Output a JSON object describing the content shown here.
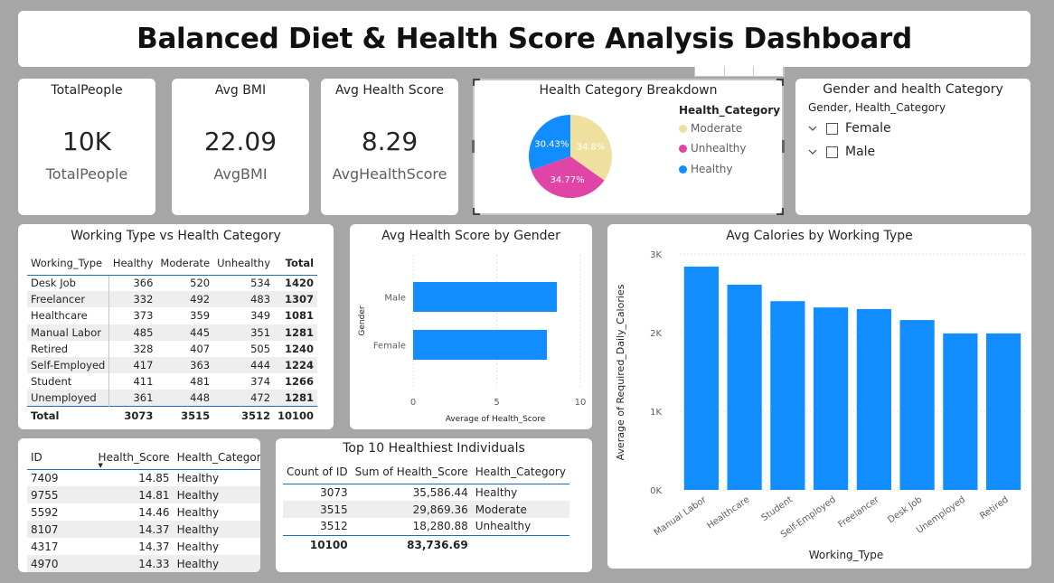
{
  "header": {
    "title": "Balanced Diet & Health Score Analysis Dashboard"
  },
  "kpis": [
    {
      "title": "TotalPeople",
      "value": "10K",
      "label": "TotalPeople"
    },
    {
      "title": "Avg BMI",
      "value": "22.09",
      "label": "AvgBMI"
    },
    {
      "title": "Avg Health Score",
      "value": "8.29",
      "label": "AvgHealthScore"
    }
  ],
  "pie": {
    "title": "Health Category Breakdown",
    "legend_title": "Health_Category",
    "slices": [
      {
        "name": "Moderate",
        "pct": 34.8,
        "label": "34.8%",
        "color": "#f0e0a0"
      },
      {
        "name": "Unhealthy",
        "pct": 34.77,
        "label": "34.77%",
        "color": "#e044a7"
      },
      {
        "name": "Healthy",
        "pct": 30.43,
        "label": "30.43%",
        "color": "#118dff"
      }
    ]
  },
  "slicer": {
    "title": "Gender and health Category",
    "subtitle": "Gender, Health_Category",
    "items": [
      "Female",
      "Male"
    ]
  },
  "matrix": {
    "title": "Working Type vs Health Category",
    "headers": [
      "Working_Type",
      "Healthy",
      "Moderate",
      "Unhealthy",
      "Total"
    ],
    "rows": [
      [
        "Desk Job",
        "366",
        "520",
        "534",
        "1420"
      ],
      [
        "Freelancer",
        "332",
        "492",
        "483",
        "1307"
      ],
      [
        "Healthcare",
        "373",
        "359",
        "349",
        "1081"
      ],
      [
        "Manual Labor",
        "485",
        "445",
        "351",
        "1281"
      ],
      [
        "Retired",
        "328",
        "407",
        "505",
        "1240"
      ],
      [
        "Self-Employed",
        "417",
        "363",
        "444",
        "1224"
      ],
      [
        "Student",
        "411",
        "481",
        "374",
        "1266"
      ],
      [
        "Unemployed",
        "361",
        "448",
        "472",
        "1281"
      ]
    ],
    "total": [
      "Total",
      "3073",
      "3515",
      "3512",
      "10100"
    ]
  },
  "gender_chart": {
    "title": "Avg Health Score by Gender",
    "ylabel": "Gender",
    "xlabel": "Average of Health_Score",
    "categories": [
      "Male",
      "Female"
    ],
    "values": [
      8.6,
      8.0
    ],
    "xticks": [
      "0",
      "5",
      "10"
    ],
    "xlim": [
      0,
      10
    ]
  },
  "chart_data": {
    "type": "bar",
    "title": "Avg Calories by Working Type",
    "xlabel": "Working_Type",
    "ylabel": "Average of Required_Daily_Calories",
    "categories": [
      "Manual Labor",
      "Healthcare",
      "Student",
      "Self-Employed",
      "Freelancer",
      "Desk Job",
      "Unemployed",
      "Retired"
    ],
    "values": [
      2840,
      2610,
      2400,
      2320,
      2300,
      2160,
      1990,
      1990
    ],
    "yticks": [
      "0K",
      "1K",
      "2K",
      "3K"
    ],
    "ylim": [
      0,
      3000
    ],
    "color": "#118dff"
  },
  "list": {
    "headers": [
      "ID",
      "Health_Score",
      "Health_Category"
    ],
    "rows": [
      [
        "7409",
        "14.85",
        "Healthy"
      ],
      [
        "9755",
        "14.81",
        "Healthy"
      ],
      [
        "5592",
        "14.46",
        "Healthy"
      ],
      [
        "8107",
        "14.37",
        "Healthy"
      ],
      [
        "4317",
        "14.37",
        "Healthy"
      ],
      [
        "4970",
        "14.33",
        "Healthy"
      ]
    ]
  },
  "summary": {
    "title": "Top 10 Healthiest Individuals",
    "headers": [
      "Count of ID",
      "Sum of Health_Score",
      "Health_Category"
    ],
    "rows": [
      [
        "3073",
        "35,586.44",
        "Healthy"
      ],
      [
        "3515",
        "29,869.36",
        "Moderate"
      ],
      [
        "3512",
        "18,280.88",
        "Unhealthy"
      ]
    ],
    "total": [
      "10100",
      "83,736.69",
      ""
    ]
  }
}
